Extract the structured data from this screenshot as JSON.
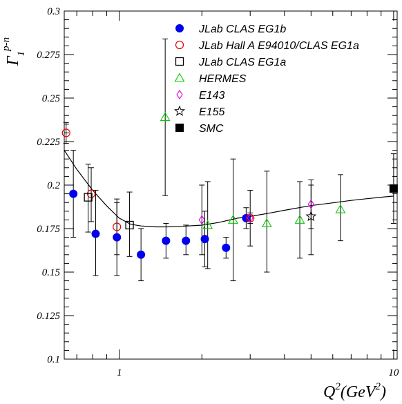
{
  "chart_data": {
    "type": "scatter",
    "title": "",
    "xlabel": "Q",
    "xlabel_sup": "2",
    "xlabel_unit": "(GeV",
    "xlabel_unit_sup": "2",
    "xlabel_close": ")",
    "ylabel": "Γ",
    "ylabel_sub": "1",
    "ylabel_sup": "p-n",
    "x_scale": "log",
    "xlim": [
      0.63,
      10.3
    ],
    "ylim": [
      0.1,
      0.3
    ],
    "x_ticks": [
      {
        "value": 1,
        "label": "1"
      },
      {
        "value": 10,
        "label": "10"
      }
    ],
    "y_ticks": [
      {
        "value": 0.1,
        "label": "0.1"
      },
      {
        "value": 0.125,
        "label": "0.125"
      },
      {
        "value": 0.15,
        "label": "0.15"
      },
      {
        "value": 0.175,
        "label": "0.175"
      },
      {
        "value": 0.2,
        "label": "0.2"
      },
      {
        "value": 0.225,
        "label": "0.225"
      },
      {
        "value": 0.25,
        "label": "0.25"
      },
      {
        "value": 0.275,
        "label": "0.275"
      },
      {
        "value": 0.3,
        "label": "0.3"
      }
    ],
    "legend_position": "top-right",
    "series": [
      {
        "name": "JLab CLAS EG1b",
        "marker": "filled-circle",
        "color": "#0000ee",
        "points": [
          {
            "x": 0.68,
            "y": 0.195,
            "ylo": 0.17,
            "yhi": 0.22
          },
          {
            "x": 0.82,
            "y": 0.172,
            "ylo": 0.148,
            "yhi": 0.197
          },
          {
            "x": 0.98,
            "y": 0.17,
            "ylo": 0.148,
            "yhi": 0.192
          },
          {
            "x": 1.2,
            "y": 0.16,
            "ylo": 0.145,
            "yhi": 0.175
          },
          {
            "x": 1.48,
            "y": 0.168,
            "ylo": 0.158,
            "yhi": 0.178
          },
          {
            "x": 1.75,
            "y": 0.168,
            "ylo": 0.16,
            "yhi": 0.177
          },
          {
            "x": 2.05,
            "y": 0.169,
            "ylo": 0.153,
            "yhi": 0.185
          },
          {
            "x": 2.45,
            "y": 0.164,
            "ylo": 0.158,
            "yhi": 0.17
          },
          {
            "x": 2.9,
            "y": 0.181,
            "ylo": 0.175,
            "yhi": 0.187
          }
        ]
      },
      {
        "name": "JLab Hall A E94010/CLAS EG1a",
        "marker": "open-circle",
        "color": "#e00000",
        "points": [
          {
            "x": 0.64,
            "y": 0.23,
            "ylo": 0.224,
            "yhi": 0.236
          },
          {
            "x": 0.79,
            "y": 0.195,
            "ylo": 0.179,
            "yhi": 0.21
          },
          {
            "x": 0.98,
            "y": 0.176,
            "ylo": 0.16,
            "yhi": 0.19
          },
          {
            "x": 3.0,
            "y": 0.181,
            "ylo": 0.178,
            "yhi": 0.184
          }
        ]
      },
      {
        "name": "JLab CLAS EG1a",
        "marker": "open-square",
        "color": "#000000",
        "points": [
          {
            "x": 0.77,
            "y": 0.193,
            "ylo": 0.173,
            "yhi": 0.212
          },
          {
            "x": 1.09,
            "y": 0.177,
            "ylo": 0.159,
            "yhi": 0.196
          }
        ]
      },
      {
        "name": "HERMES",
        "marker": "open-triangle",
        "color": "#00cc00",
        "points": [
          {
            "x": 1.47,
            "y": 0.239,
            "ylo": 0.194,
            "yhi": 0.284
          },
          {
            "x": 2.1,
            "y": 0.177,
            "ylo": 0.152,
            "yhi": 0.202
          },
          {
            "x": 2.6,
            "y": 0.18,
            "ylo": 0.145,
            "yhi": 0.215
          },
          {
            "x": 3.45,
            "y": 0.178,
            "ylo": 0.15,
            "yhi": 0.208
          },
          {
            "x": 4.55,
            "y": 0.18,
            "ylo": 0.158,
            "yhi": 0.202
          },
          {
            "x": 6.4,
            "y": 0.186,
            "ylo": 0.168,
            "yhi": 0.206
          }
        ]
      },
      {
        "name": "E143",
        "marker": "open-diamond",
        "color": "#e000e0",
        "points": [
          {
            "x": 2.0,
            "y": 0.18,
            "ylo": 0.16,
            "yhi": 0.2
          },
          {
            "x": 3.0,
            "y": 0.181,
            "ylo": 0.165,
            "yhi": 0.197
          },
          {
            "x": 5.0,
            "y": 0.189,
            "ylo": 0.175,
            "yhi": 0.203
          }
        ]
      },
      {
        "name": "E155",
        "marker": "open-star",
        "color": "#000000",
        "points": [
          {
            "x": 5.0,
            "y": 0.182,
            "ylo": 0.16,
            "yhi": 0.2
          }
        ]
      },
      {
        "name": "SMC",
        "marker": "filled-square",
        "color": "#000000",
        "points": [
          {
            "x": 10.0,
            "y": 0.198,
            "ylo": 0.178,
            "yhi": 0.218
          }
        ]
      }
    ],
    "curve": {
      "x": [
        0.63,
        0.7,
        0.8,
        0.9,
        1.0,
        1.1,
        1.2,
        1.35,
        1.5,
        1.7,
        2.0,
        2.3,
        2.7,
        3.0,
        3.5,
        4.0,
        5.0,
        6.0,
        7.0,
        8.0,
        9.0,
        10.0
      ],
      "y": [
        0.22,
        0.209,
        0.197,
        0.188,
        0.181,
        0.1775,
        0.1765,
        0.176,
        0.176,
        0.1763,
        0.177,
        0.1785,
        0.181,
        0.182,
        0.1838,
        0.1855,
        0.1882,
        0.1898,
        0.1912,
        0.1922,
        0.193,
        0.1937
      ]
    }
  }
}
